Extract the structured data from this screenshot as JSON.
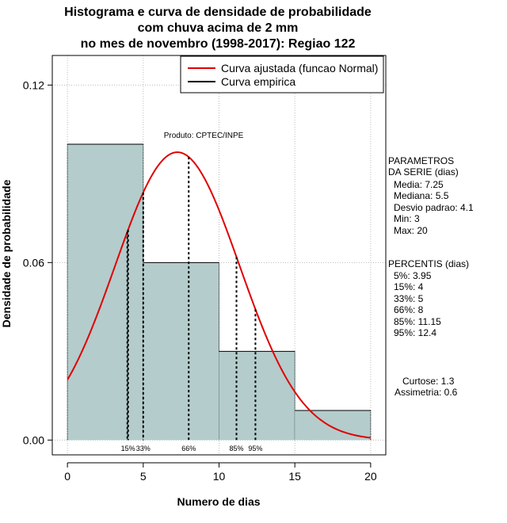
{
  "title_lines": [
    "Histograma e curva de densidade de probabilidade",
    "com chuva acima de 2 mm",
    "no mes de novembro (1998-2017): Regiao 122"
  ],
  "watermark": "Produto: CPTEC/INPE",
  "side_panel": {
    "params_header": [
      "PARAMETROS",
      "DA SERIE (dias)"
    ],
    "params": [
      "Media: 7.25",
      "Mediana: 5.5",
      "Desvio padrao: 4.1",
      "Min: 3",
      "Max: 20"
    ],
    "percentis_header": "PERCENTIS (dias)",
    "percentis": [
      "5%: 3.95",
      "15%: 4",
      "33%: 5",
      "66%: 8",
      "85%: 11.15",
      "95%: 12.4"
    ],
    "extra": [
      "Curtose: 1.3",
      "Assimetria: 0.6"
    ]
  },
  "chart_data": {
    "type": "bar",
    "xlabel": "Numero de dias",
    "ylabel": "Densidade de probabilidade",
    "xlim": [
      -1,
      21
    ],
    "ylim": [
      -0.005,
      0.13
    ],
    "x_ticks": [
      0,
      5,
      10,
      15,
      20
    ],
    "x_tick_labels": [
      "0",
      "5",
      "10",
      "15",
      "20"
    ],
    "y_ticks": [
      0,
      0.06,
      0.12
    ],
    "y_tick_labels": [
      "0.00",
      "0.06",
      "0.12"
    ],
    "grid": true,
    "legend_position": "top-right",
    "bins": [
      {
        "from": 0,
        "to": 5,
        "density": 0.1
      },
      {
        "from": 5,
        "to": 10,
        "density": 0.06
      },
      {
        "from": 10,
        "to": 15,
        "density": 0.03
      },
      {
        "from": 15,
        "to": 20,
        "density": 0.01
      }
    ],
    "series": [
      {
        "name": "Curva ajustada (funcao Normal)",
        "color": "#e00000",
        "type": "normal_curve",
        "mean": 7.25,
        "sd": 4.1,
        "x_range": [
          0,
          20
        ]
      },
      {
        "name": "Curva empirica",
        "color": "#000000",
        "type": "line"
      }
    ],
    "percentile_lines": [
      {
        "x": 3.95,
        "label": ""
      },
      {
        "x": 4,
        "label": "15%"
      },
      {
        "x": 5,
        "label": "33%"
      },
      {
        "x": 8,
        "label": "66%"
      },
      {
        "x": 11.15,
        "label": "85%"
      },
      {
        "x": 12.4,
        "label": "95%"
      }
    ],
    "colors": {
      "bar_fill": "#b4cccc",
      "curve": "#e00000",
      "grid": "#bbbbbb"
    }
  }
}
